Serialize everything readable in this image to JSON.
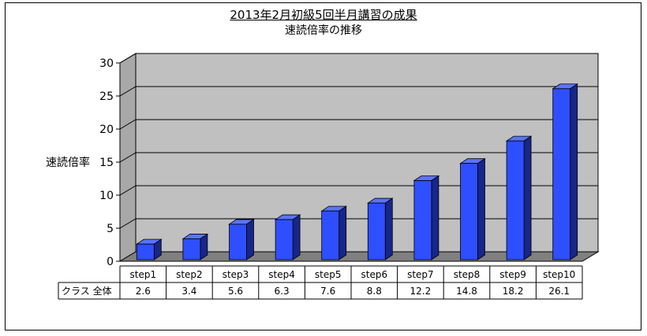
{
  "chart_data": {
    "type": "bar",
    "title": "2013年2月初級5回半月講習の成果",
    "subtitle": "速読倍率の推移",
    "ylabel": "速読倍率",
    "xlabel": "",
    "ylim": [
      0,
      30
    ],
    "yticks": [
      0,
      5,
      10,
      15,
      20,
      25,
      30
    ],
    "grid": true,
    "categories": [
      "step1",
      "step2",
      "step3",
      "step4",
      "step5",
      "step6",
      "step7",
      "step8",
      "step9",
      "step10"
    ],
    "series": [
      {
        "name": "クラス 全体",
        "values": [
          2.6,
          3.4,
          5.6,
          6.3,
          7.6,
          8.8,
          12.2,
          14.8,
          18.2,
          26.1
        ],
        "color": "#2e4fff"
      }
    ],
    "data_table": true
  }
}
